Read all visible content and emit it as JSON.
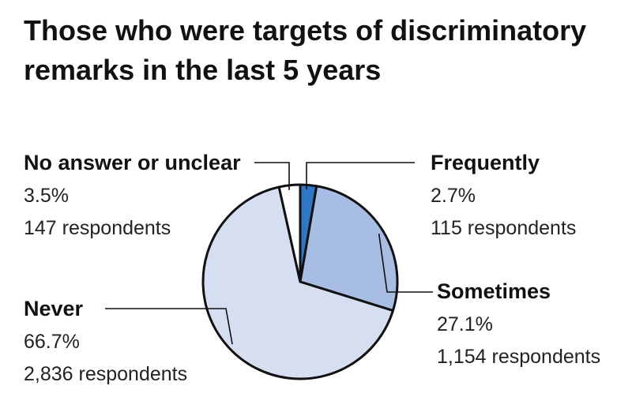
{
  "title_lines": [
    "Those who were targets of discriminatory",
    "remarks in the last 5 years"
  ],
  "chart_data": {
    "type": "pie",
    "title": "Those who were targets of discriminatory remarks in the last 5 years",
    "slices": [
      {
        "name": "Frequently",
        "value": 2.7,
        "percent_label": "2.7%",
        "count_label": "115 respondents",
        "color": "#2f78c8"
      },
      {
        "name": "Sometimes",
        "value": 27.1,
        "percent_label": "27.1%",
        "count_label": "1,154 respondents",
        "color": "#a7bde3"
      },
      {
        "name": "Never",
        "value": 66.7,
        "percent_label": "66.7%",
        "count_label": "2,836 respondents",
        "color": "#d5dff1"
      },
      {
        "name": "No answer or unclear",
        "value": 3.5,
        "percent_label": "3.5%",
        "count_label": "147 respondents",
        "color": "#ffffff"
      }
    ]
  }
}
